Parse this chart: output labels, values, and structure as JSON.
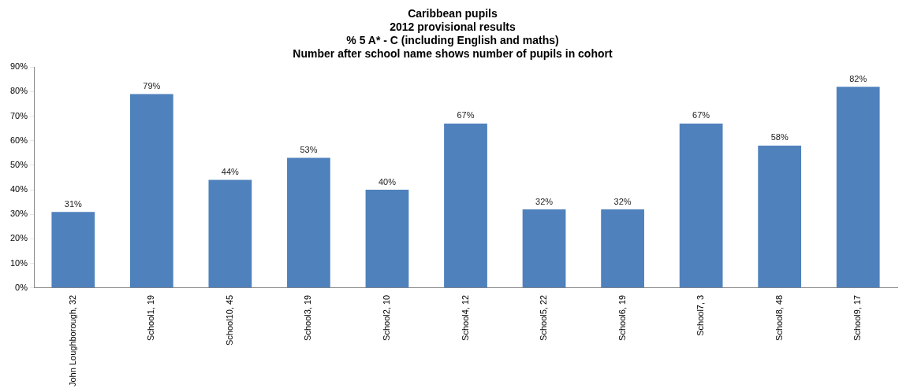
{
  "chart_data": {
    "type": "bar",
    "title": [
      "Caribbean pupils",
      "2012 provisional results",
      "% 5 A* - C (including English and maths)",
      "Number after school name shows number of pupils in cohort"
    ],
    "categories": [
      "John Loughborough, 32",
      "School1, 19",
      "School10, 45",
      "School3, 19",
      "School2, 10",
      "School4, 12",
      "School5, 22",
      "School6, 19",
      "School7, 3",
      "School8, 48",
      "School9, 17"
    ],
    "values": [
      31,
      79,
      44,
      53,
      40,
      67,
      32,
      32,
      67,
      58,
      82
    ],
    "value_labels": [
      "31%",
      "79%",
      "44%",
      "53%",
      "40%",
      "67%",
      "32%",
      "32%",
      "67%",
      "58%",
      "82%"
    ],
    "color": "#4f81bd",
    "ylim": [
      0,
      90
    ],
    "yticks": [
      {
        "value": 0,
        "label": "0%"
      },
      {
        "value": 10,
        "label": "10%"
      },
      {
        "value": 20,
        "label": "20%"
      },
      {
        "value": 30,
        "label": "30%"
      },
      {
        "value": 40,
        "label": "40%"
      },
      {
        "value": 50,
        "label": "50%"
      },
      {
        "value": 60,
        "label": "60%"
      },
      {
        "value": 70,
        "label": "70%"
      },
      {
        "value": 80,
        "label": "80%"
      },
      {
        "value": 90,
        "label": "90%"
      }
    ],
    "grid": false,
    "legend": false
  }
}
